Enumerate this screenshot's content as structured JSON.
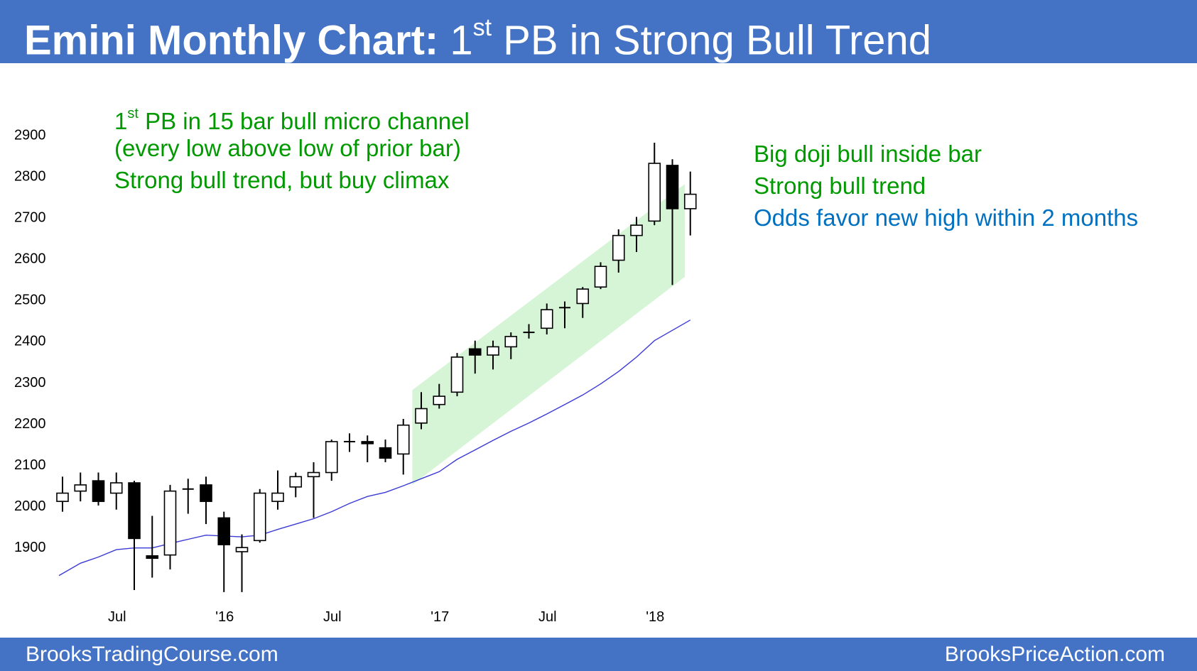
{
  "header": {
    "title_bold": "Emini Monthly Chart:",
    "title_pre": "1",
    "title_sup": "st",
    "title_rest": "PB in Strong Bull Trend"
  },
  "annotations": {
    "left_line1_pre": "1",
    "left_line1_sup": "st",
    "left_line1_rest": "PB in 15 bar bull micro channel",
    "left_line2": "(every low above low of prior bar)",
    "left_line3": "Strong bull trend, but buy climax",
    "right_line1": "Big doji bull inside bar",
    "right_line2": "Strong bull trend",
    "right_line3": "Odds favor new high within 2 months"
  },
  "footer": {
    "left": "BrooksTradingCourse.com",
    "right": "BrooksPriceAction.com"
  },
  "colors": {
    "header_bg": "#4472c4",
    "green_text": "#009900",
    "blue_text": "#0070c0",
    "channel_fill": "#d6f5d6",
    "moving_average": "#3a3ad6",
    "bear_body": "#000000",
    "bull_body": "#ffffff"
  },
  "chart_data": {
    "type": "candlestick",
    "title": "",
    "xlabel": "",
    "ylabel": "",
    "ylim": [
      1770,
      2930
    ],
    "yticks": [
      1900,
      2000,
      2100,
      2200,
      2300,
      2400,
      2500,
      2600,
      2700,
      2800,
      2900
    ],
    "xticks": [
      {
        "index": 3,
        "label": "Jul"
      },
      {
        "index": 9,
        "label": "'16"
      },
      {
        "index": 15,
        "label": "Jul"
      },
      {
        "index": 21,
        "label": "'17"
      },
      {
        "index": 27,
        "label": "Jul"
      },
      {
        "index": 33,
        "label": "'18"
      }
    ],
    "candles": [
      {
        "o": 2010,
        "h": 2070,
        "l": 1985,
        "c": 2030
      },
      {
        "o": 2035,
        "h": 2080,
        "l": 2010,
        "c": 2050
      },
      {
        "o": 2060,
        "h": 2080,
        "l": 2000,
        "c": 2010
      },
      {
        "o": 2030,
        "h": 2080,
        "l": 1990,
        "c": 2055
      },
      {
        "o": 2055,
        "h": 2060,
        "l": 1795,
        "c": 1920
      },
      {
        "o": 1878,
        "h": 1975,
        "l": 1825,
        "c": 1872
      },
      {
        "o": 1880,
        "h": 2050,
        "l": 1845,
        "c": 2035
      },
      {
        "o": 2040,
        "h": 2065,
        "l": 1980,
        "c": 2040
      },
      {
        "o": 2050,
        "h": 2070,
        "l": 1955,
        "c": 2010
      },
      {
        "o": 1970,
        "h": 1985,
        "l": 1790,
        "c": 1905
      },
      {
        "o": 1888,
        "h": 1930,
        "l": 1790,
        "c": 1898
      },
      {
        "o": 1915,
        "h": 2040,
        "l": 1910,
        "c": 2030
      },
      {
        "o": 2010,
        "h": 2085,
        "l": 1990,
        "c": 2030
      },
      {
        "o": 2045,
        "h": 2080,
        "l": 2020,
        "c": 2070
      },
      {
        "o": 2070,
        "h": 2105,
        "l": 1970,
        "c": 2080
      },
      {
        "o": 2080,
        "h": 2160,
        "l": 2060,
        "c": 2155
      },
      {
        "o": 2155,
        "h": 2175,
        "l": 2130,
        "c": 2155
      },
      {
        "o": 2155,
        "h": 2170,
        "l": 2105,
        "c": 2150
      },
      {
        "o": 2140,
        "h": 2160,
        "l": 2105,
        "c": 2115
      },
      {
        "o": 2125,
        "h": 2210,
        "l": 2075,
        "c": 2195
      },
      {
        "o": 2200,
        "h": 2275,
        "l": 2185,
        "c": 2235
      },
      {
        "o": 2245,
        "h": 2295,
        "l": 2235,
        "c": 2265
      },
      {
        "o": 2275,
        "h": 2370,
        "l": 2265,
        "c": 2360
      },
      {
        "o": 2380,
        "h": 2400,
        "l": 2320,
        "c": 2365
      },
      {
        "o": 2365,
        "h": 2400,
        "l": 2330,
        "c": 2385
      },
      {
        "o": 2385,
        "h": 2420,
        "l": 2355,
        "c": 2410
      },
      {
        "o": 2420,
        "h": 2440,
        "l": 2405,
        "c": 2420
      },
      {
        "o": 2430,
        "h": 2490,
        "l": 2415,
        "c": 2475
      },
      {
        "o": 2480,
        "h": 2495,
        "l": 2430,
        "c": 2480
      },
      {
        "o": 2490,
        "h": 2530,
        "l": 2455,
        "c": 2525
      },
      {
        "o": 2530,
        "h": 2590,
        "l": 2525,
        "c": 2580
      },
      {
        "o": 2595,
        "h": 2670,
        "l": 2565,
        "c": 2655
      },
      {
        "o": 2655,
        "h": 2700,
        "l": 2615,
        "c": 2680
      },
      {
        "o": 2690,
        "h": 2880,
        "l": 2680,
        "c": 2830
      },
      {
        "o": 2825,
        "h": 2840,
        "l": 2535,
        "c": 2720
      },
      {
        "o": 2720,
        "h": 2810,
        "l": 2655,
        "c": 2755
      }
    ],
    "moving_average": [
      {
        "x": -0.2,
        "y": 1830
      },
      {
        "x": 1,
        "y": 1860
      },
      {
        "x": 2,
        "y": 1875
      },
      {
        "x": 3,
        "y": 1893
      },
      {
        "x": 4,
        "y": 1897
      },
      {
        "x": 5,
        "y": 1897
      },
      {
        "x": 6,
        "y": 1908
      },
      {
        "x": 7,
        "y": 1918
      },
      {
        "x": 8,
        "y": 1928
      },
      {
        "x": 9,
        "y": 1926
      },
      {
        "x": 10,
        "y": 1924
      },
      {
        "x": 11,
        "y": 1928
      },
      {
        "x": 12,
        "y": 1942
      },
      {
        "x": 13,
        "y": 1955
      },
      {
        "x": 14,
        "y": 1968
      },
      {
        "x": 15,
        "y": 1985
      },
      {
        "x": 16,
        "y": 2005
      },
      {
        "x": 17,
        "y": 2022
      },
      {
        "x": 18,
        "y": 2032
      },
      {
        "x": 19,
        "y": 2048
      },
      {
        "x": 20,
        "y": 2065
      },
      {
        "x": 21,
        "y": 2082
      },
      {
        "x": 22,
        "y": 2112
      },
      {
        "x": 23,
        "y": 2135
      },
      {
        "x": 24,
        "y": 2158
      },
      {
        "x": 25,
        "y": 2180
      },
      {
        "x": 26,
        "y": 2200
      },
      {
        "x": 27,
        "y": 2222
      },
      {
        "x": 28,
        "y": 2245
      },
      {
        "x": 29,
        "y": 2268
      },
      {
        "x": 30,
        "y": 2295
      },
      {
        "x": 31,
        "y": 2325
      },
      {
        "x": 32,
        "y": 2360
      },
      {
        "x": 33,
        "y": 2400
      },
      {
        "x": 34,
        "y": 2425
      },
      {
        "x": 35,
        "y": 2450
      }
    ],
    "channel": {
      "start_index": 19.5,
      "end_index": 34.7,
      "upper_start": 2280,
      "upper_end": 2780,
      "lower_start": 2050,
      "lower_end": 2555
    }
  }
}
